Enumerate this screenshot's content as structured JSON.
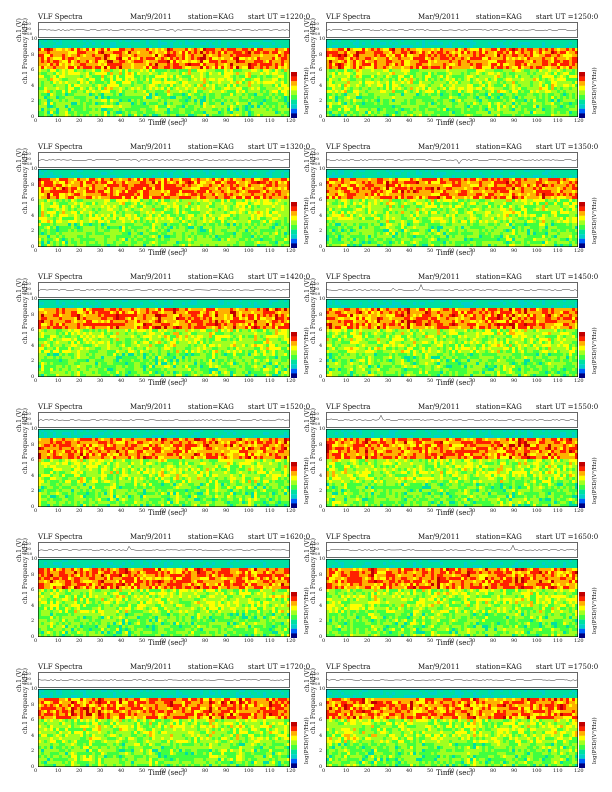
{
  "common": {
    "name": "VLF Spectra",
    "date": "Mar/9/2011",
    "station": "station=KAG",
    "start_prefix": "start  UT  =",
    "channel_label": "ch.1 (V)",
    "ylabel": "ch.1  Frequency  (kHz)",
    "xlabel": "Time  (sec)",
    "cbar_label": "log(PSD/(V²/Hz))",
    "ts_ticks": [
      "0.20",
      "0.00",
      "-0.20"
    ]
  },
  "chart_data": {
    "type": "heatmap",
    "xlim": [
      0,
      120
    ],
    "ylim": [
      0,
      10
    ],
    "x_ticks": [
      "0",
      "10",
      "20",
      "30",
      "40",
      "50",
      "60",
      "70",
      "80",
      "90",
      "100",
      "110",
      "120"
    ],
    "y_ticks": [
      "0",
      "2",
      "4",
      "6",
      "8",
      "10"
    ],
    "panels": [
      {
        "start": "1220:0"
      },
      {
        "start": "1250:0"
      },
      {
        "start": "1320:0"
      },
      {
        "start": "1350:0"
      },
      {
        "start": "1420:0"
      },
      {
        "start": "1450:0"
      },
      {
        "start": "1520:0"
      },
      {
        "start": "1550:0"
      },
      {
        "start": "1620:0"
      },
      {
        "start": "1650:0"
      },
      {
        "start": "1720:0"
      },
      {
        "start": "1750:0"
      }
    ]
  }
}
